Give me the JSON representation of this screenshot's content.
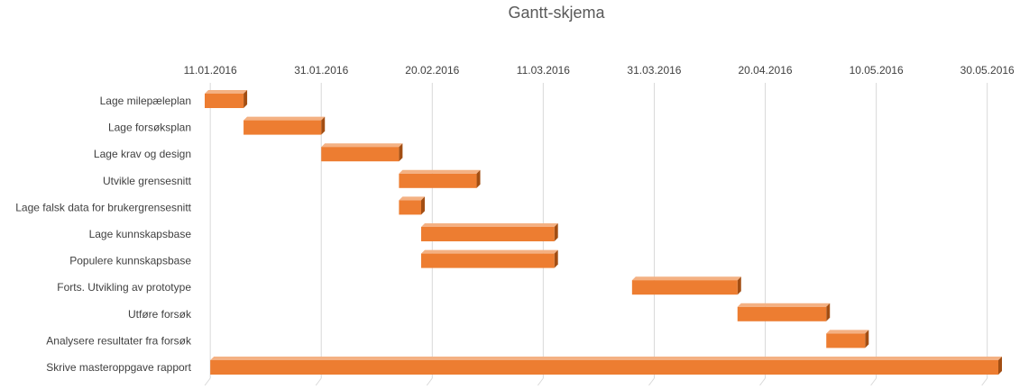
{
  "chart_data": {
    "type": "bar",
    "subtype": "gantt",
    "title": "Gantt-skjema",
    "xlabel": "",
    "ylabel": "",
    "grid": true,
    "x_axis_position": "top",
    "x_ticks": [
      "11.01.2016",
      "31.01.2016",
      "20.02.2016",
      "11.03.2016",
      "31.03.2016",
      "20.04.2016",
      "10.05.2016",
      "30.05.2016"
    ],
    "xlim": [
      "2016-01-10",
      "2016-06-01"
    ],
    "bar_color": "#ED7D31",
    "tasks": [
      {
        "name": "Lage milepæleplan",
        "start": "2016-01-10",
        "end": "2016-01-17"
      },
      {
        "name": "Lage forsøksplan",
        "start": "2016-01-17",
        "end": "2016-01-31"
      },
      {
        "name": "Lage krav og design",
        "start": "2016-01-31",
        "end": "2016-02-14"
      },
      {
        "name": "Utvikle grensesnitt",
        "start": "2016-02-14",
        "end": "2016-02-28"
      },
      {
        "name": "Lage falsk data for brukergrensesnitt",
        "start": "2016-02-14",
        "end": "2016-02-18"
      },
      {
        "name": "Lage kunnskapsbase",
        "start": "2016-02-18",
        "end": "2016-03-13"
      },
      {
        "name": "Populere kunnskapsbase",
        "start": "2016-02-18",
        "end": "2016-03-13"
      },
      {
        "name": "Forts. Utvikling av prototype",
        "start": "2016-03-27",
        "end": "2016-04-15"
      },
      {
        "name": "Utføre forsøk",
        "start": "2016-04-15",
        "end": "2016-05-01"
      },
      {
        "name": "Analysere resultater fra forsøk",
        "start": "2016-05-01",
        "end": "2016-05-08"
      },
      {
        "name": "Skrive masteroppgave rapport",
        "start": "2016-01-11",
        "end": "2016-06-01"
      }
    ]
  }
}
